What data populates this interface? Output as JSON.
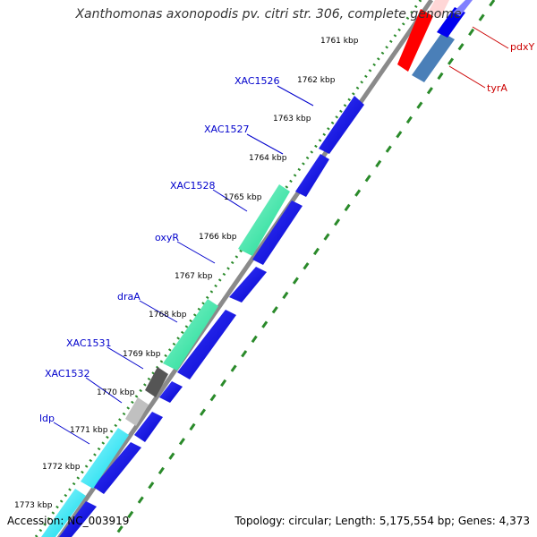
{
  "title": "Xanthomonas axonopodis pv. citri str. 306, complete genome",
  "footer": {
    "accession": "Accession: NC_003919",
    "summary": "Topology: circular; Length: 5,175,554 bp; Genes: 4,373"
  },
  "colors": {
    "forward_gene": "#0000ee",
    "reverse_gene": "#0000ee",
    "rna_like": "#20e8a0",
    "cyan_gene": "#00e0f0",
    "dark_gene": "#555555",
    "light_gene": "#bbbbbb",
    "red_gene": "#ff0000",
    "steel_gene": "#4682b4",
    "backbone": "#888888",
    "tick_dots": "#2a8a2a",
    "gene_label": "#0000cc",
    "red_label": "#cc0000",
    "kbp_label": "#000000"
  },
  "scale_labels": [
    {
      "text": "1761 kbp",
      "pos": 1761
    },
    {
      "text": "1762 kbp",
      "pos": 1762
    },
    {
      "text": "1763 kbp",
      "pos": 1763
    },
    {
      "text": "1764 kbp",
      "pos": 1764
    },
    {
      "text": "1765 kbp",
      "pos": 1765
    },
    {
      "text": "1766 kbp",
      "pos": 1766
    },
    {
      "text": "1767 kbp",
      "pos": 1767
    },
    {
      "text": "1768 kbp",
      "pos": 1768
    },
    {
      "text": "1769 kbp",
      "pos": 1769
    },
    {
      "text": "1770 kbp",
      "pos": 1770
    },
    {
      "text": "1771 kbp",
      "pos": 1771
    },
    {
      "text": "1772 kbp",
      "pos": 1772
    },
    {
      "text": "1773 kbp",
      "pos": 1773
    }
  ],
  "gene_labels": [
    {
      "text": "XAC1526"
    },
    {
      "text": "XAC1527"
    },
    {
      "text": "XAC1528"
    },
    {
      "text": "oxyR"
    },
    {
      "text": "draA"
    },
    {
      "text": "XAC1531"
    },
    {
      "text": "XAC1532"
    },
    {
      "text": "ldp"
    }
  ],
  "far_labels": [
    {
      "text": "pdxY"
    },
    {
      "text": "tyrA"
    }
  ]
}
